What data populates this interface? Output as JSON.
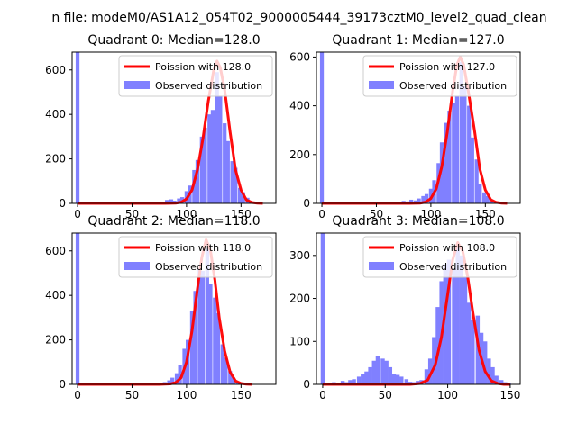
{
  "figure_title": "n file: modeM0/AS1A12_054T02_9000005444_39173cztM0_level2_quad_clean",
  "chart_data": [
    {
      "type": "bar",
      "title": "Quadrant 0: Median=128.0",
      "xlim": [
        -5,
        182
      ],
      "ylim": [
        0,
        680
      ],
      "xticks": [
        0,
        50,
        100,
        150
      ],
      "yticks": [
        0,
        200,
        400,
        600
      ],
      "legend": "top-right",
      "hist_bin_width": 3.5,
      "series": [
        {
          "name": "Poission with 128.0",
          "kind": "line",
          "color": "#ff0000",
          "x": [
            0,
            80,
            90,
            95,
            100,
            105,
            110,
            115,
            120,
            125,
            128,
            131,
            135,
            140,
            145,
            150,
            155,
            160,
            165,
            170
          ],
          "y": [
            0,
            0,
            1,
            5,
            20,
            60,
            150,
            290,
            460,
            600,
            640,
            610,
            510,
            320,
            150,
            60,
            15,
            4,
            1,
            0
          ]
        },
        {
          "name": "Observed distribution",
          "kind": "hist",
          "color": "#8080ff",
          "x": [
            0,
            82,
            86,
            89,
            93,
            96,
            100,
            103,
            107,
            110,
            114,
            117,
            121,
            124,
            128,
            131,
            135,
            138,
            142,
            145,
            149,
            152,
            156,
            159,
            163
          ],
          "y": [
            680,
            15,
            18,
            12,
            22,
            28,
            55,
            80,
            150,
            195,
            300,
            340,
            400,
            420,
            590,
            480,
            360,
            280,
            190,
            160,
            70,
            50,
            25,
            10,
            5
          ]
        }
      ]
    },
    {
      "type": "bar",
      "title": "Quadrant 1: Median=127.0",
      "xlim": [
        -5,
        182
      ],
      "ylim": [
        0,
        620
      ],
      "xticks": [
        0,
        50,
        100,
        150
      ],
      "yticks": [
        0,
        200,
        400,
        600
      ],
      "legend": "top-right",
      "hist_bin_width": 3.5,
      "series": [
        {
          "name": "Poission with 127.0",
          "kind": "line",
          "color": "#ff0000",
          "x": [
            0,
            80,
            90,
            95,
            100,
            105,
            110,
            115,
            120,
            124,
            127,
            130,
            134,
            140,
            145,
            150,
            155,
            160,
            165,
            170
          ],
          "y": [
            0,
            0,
            1,
            5,
            20,
            60,
            150,
            290,
            460,
            570,
            600,
            570,
            470,
            300,
            140,
            55,
            15,
            4,
            1,
            0
          ]
        },
        {
          "name": "Observed distribution",
          "kind": "hist",
          "color": "#8080ff",
          "x": [
            0,
            75,
            79,
            82,
            86,
            89,
            93,
            96,
            100,
            103,
            107,
            110,
            114,
            117,
            121,
            124,
            128,
            131,
            135,
            138,
            142,
            145,
            149,
            152,
            156
          ],
          "y": [
            620,
            10,
            8,
            15,
            12,
            20,
            30,
            38,
            60,
            95,
            165,
            250,
            330,
            380,
            410,
            440,
            580,
            480,
            400,
            270,
            180,
            80,
            45,
            30,
            10
          ]
        }
      ]
    },
    {
      "type": "bar",
      "title": "Quadrant 2: Median=118.0",
      "xlim": [
        -5,
        182
      ],
      "ylim": [
        0,
        680
      ],
      "xticks": [
        0,
        50,
        100,
        150
      ],
      "yticks": [
        0,
        200,
        400,
        600
      ],
      "legend": "top-right",
      "hist_bin_width": 3.5,
      "series": [
        {
          "name": "Poission with 118.0",
          "kind": "line",
          "color": "#ff0000",
          "x": [
            0,
            75,
            85,
            90,
            95,
            100,
            105,
            110,
            114,
            118,
            122,
            126,
            130,
            135,
            140,
            145,
            150,
            155,
            160
          ],
          "y": [
            0,
            0,
            2,
            8,
            30,
            100,
            240,
            430,
            570,
            650,
            600,
            470,
            300,
            150,
            55,
            15,
            4,
            1,
            0
          ]
        },
        {
          "name": "Observed distribution",
          "kind": "hist",
          "color": "#8080ff",
          "x": [
            0,
            80,
            84,
            87,
            91,
            94,
            98,
            101,
            105,
            108,
            112,
            115,
            119,
            122,
            126,
            129,
            133,
            136,
            140,
            143,
            147,
            150
          ],
          "y": [
            680,
            10,
            18,
            30,
            50,
            85,
            160,
            200,
            330,
            420,
            520,
            510,
            610,
            450,
            390,
            320,
            180,
            120,
            60,
            30,
            12,
            5
          ]
        }
      ]
    },
    {
      "type": "bar",
      "title": "Quadrant 3: Median=108.0",
      "xlim": [
        -5,
        158
      ],
      "ylim": [
        0,
        352
      ],
      "xticks": [
        0,
        50,
        100,
        150
      ],
      "yticks": [
        0,
        100,
        200,
        300
      ],
      "legend": "top-right",
      "hist_bin_width": 3.2,
      "series": [
        {
          "name": "Poission with 108.0",
          "kind": "line",
          "color": "#ff0000",
          "x": [
            0,
            70,
            78,
            84,
            90,
            95,
            100,
            104,
            108,
            112,
            116,
            120,
            125,
            130,
            135,
            140,
            145,
            150
          ],
          "y": [
            0,
            0,
            2,
            10,
            45,
            110,
            210,
            290,
            330,
            310,
            250,
            170,
            80,
            30,
            8,
            2,
            0,
            0
          ]
        },
        {
          "name": "Observed distribution",
          "kind": "hist",
          "color": "#8080ff",
          "x": [
            0,
            6,
            9,
            13,
            16,
            19,
            22,
            25,
            29,
            32,
            35,
            38,
            41,
            44,
            48,
            51,
            54,
            57,
            60,
            63,
            67,
            70,
            73,
            76,
            79,
            83,
            86,
            89,
            92,
            95,
            98,
            101,
            105,
            108,
            111,
            114,
            117,
            120,
            124,
            127,
            130,
            133,
            136,
            139,
            143,
            146,
            149
          ],
          "y": [
            352,
            3,
            5,
            4,
            8,
            5,
            10,
            12,
            18,
            25,
            30,
            40,
            55,
            65,
            60,
            55,
            40,
            25,
            22,
            18,
            12,
            6,
            5,
            8,
            10,
            35,
            60,
            110,
            180,
            240,
            280,
            290,
            270,
            320,
            300,
            250,
            190,
            150,
            160,
            120,
            100,
            60,
            40,
            20,
            10,
            5,
            3
          ]
        }
      ]
    }
  ]
}
